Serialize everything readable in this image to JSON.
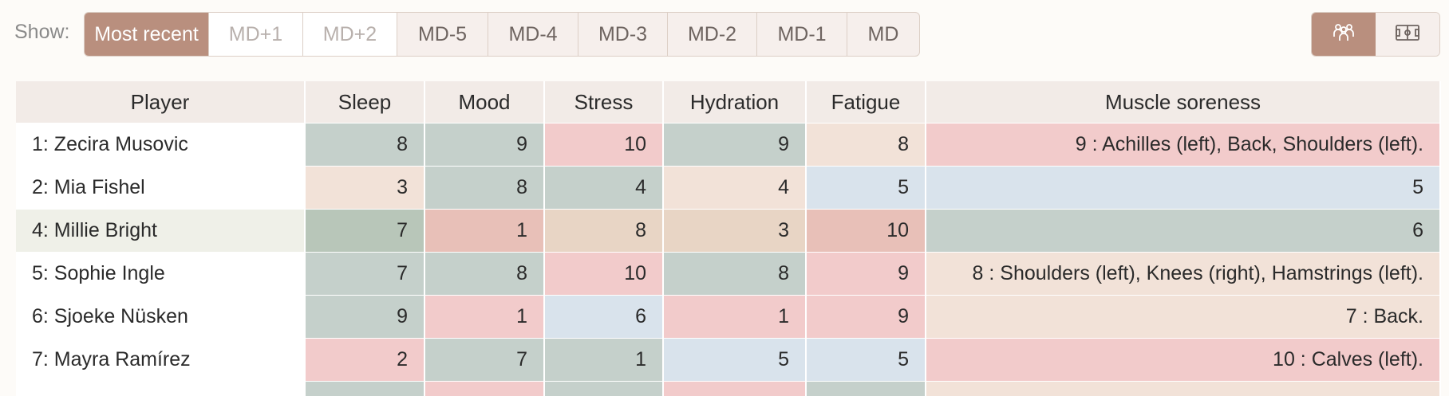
{
  "toolbar": {
    "show_label": "Show:",
    "segments": [
      {
        "label": "Most recent",
        "state": "active"
      },
      {
        "label": "MD+1",
        "state": "disabled"
      },
      {
        "label": "MD+2",
        "state": "disabled"
      },
      {
        "label": "MD-5",
        "state": "normal"
      },
      {
        "label": "MD-4",
        "state": "normal"
      },
      {
        "label": "MD-3",
        "state": "normal"
      },
      {
        "label": "MD-2",
        "state": "normal"
      },
      {
        "label": "MD-1",
        "state": "normal"
      },
      {
        "label": "MD",
        "state": "normal"
      }
    ],
    "views": [
      {
        "icon": "team-people-icon",
        "active": true
      },
      {
        "icon": "pitch-field-icon",
        "active": false
      }
    ]
  },
  "table": {
    "headers": [
      "Player",
      "Sleep",
      "Mood",
      "Stress",
      "Hydration",
      "Fatigue",
      "Muscle soreness"
    ],
    "rows": [
      {
        "player": "1: Zecira Musovic",
        "sleep": "8",
        "mood": "9",
        "stress": "10",
        "hydration": "9",
        "fatigue": "8",
        "soreness": "9 : Achilles (left), Back, Shoulders (left)."
      },
      {
        "player": "2: Mia Fishel",
        "sleep": "3",
        "mood": "8",
        "stress": "4",
        "hydration": "4",
        "fatigue": "5",
        "soreness": "5"
      },
      {
        "player": "4: Millie Bright",
        "sleep": "7",
        "mood": "1",
        "stress": "8",
        "hydration": "3",
        "fatigue": "10",
        "soreness": "6"
      },
      {
        "player": "5: Sophie Ingle",
        "sleep": "7",
        "mood": "8",
        "stress": "10",
        "hydration": "8",
        "fatigue": "9",
        "soreness": "8 : Shoulders (left), Knees (right), Hamstrings (left)."
      },
      {
        "player": "6: Sjoeke Nüsken",
        "sleep": "9",
        "mood": "1",
        "stress": "6",
        "hydration": "1",
        "fatigue": "9",
        "soreness": "7 : Back."
      },
      {
        "player": "7: Mayra Ramírez",
        "sleep": "2",
        "mood": "7",
        "stress": "1",
        "hydration": "5",
        "fatigue": "5",
        "soreness": "10 : Calves (left)."
      }
    ]
  },
  "colors": {
    "accent": "#b98f7e",
    "good": "#c5d0cb",
    "ok": "#f2e2d8",
    "neutral": "#d9e3ec",
    "bad": "#f2cbcb"
  }
}
